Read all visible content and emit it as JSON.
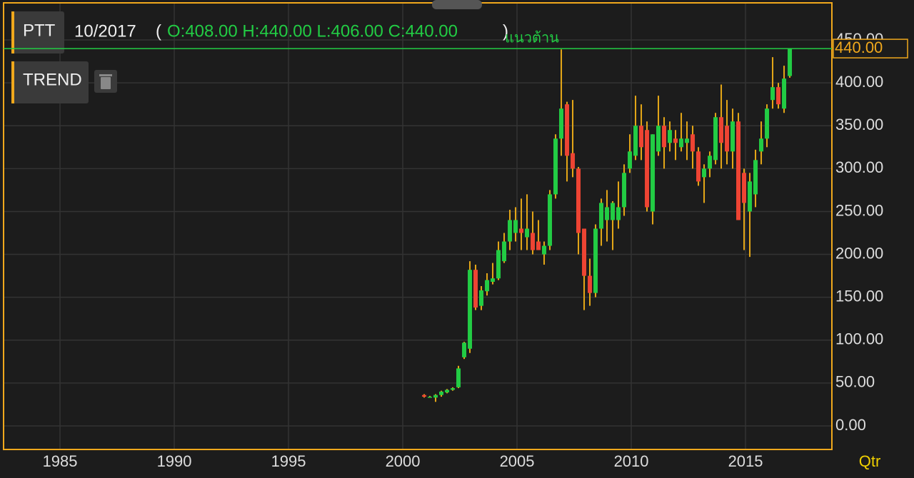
{
  "chart_data": {
    "type": "candlestick",
    "header": {
      "symbol": "PTT",
      "period": "10/2017",
      "open_paren": "(",
      "ohlc": "O:408.00 H:440.00 L:406.00 C:440.00",
      "close_paren": ")",
      "indicator": "TREND"
    },
    "interval": "Qtr",
    "hline": {
      "value": 440,
      "label": "แนวต้าน",
      "price_label": "440.00",
      "color": "#22cc44"
    },
    "up_color": "#22cc44",
    "down_color": "#ee4433",
    "wick_color": "#e6a817",
    "grid": true,
    "xlim": [
      1982.53,
      2018.78
    ],
    "xticks": [
      1985,
      1990,
      1995,
      2000,
      2005,
      2010,
      2015
    ],
    "ylim": [
      -27.5,
      493.3
    ],
    "yticks": [
      {
        "value": 0,
        "label": "0.00"
      },
      {
        "value": 50,
        "label": "50.00"
      },
      {
        "value": 100,
        "label": "100.00"
      },
      {
        "value": 150,
        "label": "150.00"
      },
      {
        "value": 200,
        "label": "200.00"
      },
      {
        "value": 250,
        "label": "250.00"
      },
      {
        "value": 300,
        "label": "300.00"
      },
      {
        "value": 350,
        "label": "350.00"
      },
      {
        "value": 400,
        "label": "400.00"
      },
      {
        "value": 450,
        "label": "450.00"
      }
    ],
    "x": [
      2000.9375,
      2001.1875,
      2001.4375,
      2001.6875,
      2001.9375,
      2002.1875,
      2002.4375,
      2002.6875,
      2002.9375,
      2003.1875,
      2003.4375,
      2003.6875,
      2003.9375,
      2004.1875,
      2004.4375,
      2004.6875,
      2004.9375,
      2005.1875,
      2005.4375,
      2005.6875,
      2005.9375,
      2006.1875,
      2006.4375,
      2006.6875,
      2006.9375,
      2007.1875,
      2007.4375,
      2007.6875,
      2007.9375,
      2008.1875,
      2008.4375,
      2008.6875,
      2008.9375,
      2009.1875,
      2009.4375,
      2009.6875,
      2009.9375,
      2010.1875,
      2010.4375,
      2010.6875,
      2010.9375,
      2011.1875,
      2011.4375,
      2011.6875,
      2011.9375,
      2012.1875,
      2012.4375,
      2012.6875,
      2012.9375,
      2013.1875,
      2013.4375,
      2013.6875,
      2013.9375,
      2014.1875,
      2014.4375,
      2014.6875,
      2014.9375,
      2015.1875,
      2015.4375,
      2015.6875,
      2015.9375,
      2016.1875,
      2016.4375,
      2016.6875,
      2016.9375
    ],
    "open": [
      36,
      34,
      33,
      36,
      39,
      42,
      45,
      80,
      90,
      182,
      140,
      157,
      168,
      172,
      192,
      215,
      225,
      230,
      220,
      225,
      215,
      200,
      210,
      270,
      335,
      375,
      318,
      300,
      230,
      175,
      155,
      230,
      240,
      240,
      240,
      255,
      300,
      315,
      350,
      345,
      250,
      320,
      350,
      330,
      335,
      325,
      330,
      340,
      320,
      290,
      300,
      310,
      360,
      350,
      320,
      355,
      295,
      250,
      270,
      320,
      335,
      380,
      395,
      370,
      408
    ],
    "high": [
      37,
      35,
      37,
      41,
      43,
      45,
      70,
      98,
      192,
      188,
      163,
      178,
      190,
      215,
      225,
      252,
      255,
      265,
      270,
      250,
      240,
      215,
      275,
      340,
      439,
      378,
      380,
      302,
      230,
      195,
      235,
      265,
      275,
      262,
      285,
      305,
      340,
      385,
      375,
      355,
      340,
      385,
      360,
      355,
      345,
      365,
      355,
      350,
      325,
      305,
      320,
      365,
      398,
      380,
      370,
      365,
      300,
      295,
      322,
      355,
      375,
      430,
      400,
      420,
      440
    ],
    "low": [
      33,
      33,
      28,
      34,
      38,
      41,
      44,
      78,
      85,
      135,
      135,
      152,
      165,
      170,
      190,
      205,
      215,
      205,
      205,
      200,
      205,
      188,
      205,
      265,
      315,
      285,
      290,
      200,
      135,
      140,
      150,
      210,
      215,
      205,
      230,
      245,
      295,
      310,
      310,
      250,
      235,
      315,
      300,
      320,
      310,
      320,
      310,
      300,
      280,
      260,
      290,
      305,
      300,
      305,
      300,
      240,
      205,
      197,
      255,
      305,
      325,
      370,
      370,
      365,
      406
    ],
    "close": [
      34,
      34,
      36,
      40,
      42,
      44,
      67,
      97,
      182,
      138,
      158,
      170,
      172,
      205,
      215,
      240,
      240,
      225,
      230,
      205,
      205,
      210,
      270,
      335,
      370,
      315,
      300,
      225,
      175,
      155,
      230,
      260,
      255,
      260,
      255,
      295,
      320,
      350,
      325,
      255,
      340,
      350,
      325,
      345,
      330,
      335,
      335,
      320,
      285,
      300,
      315,
      360,
      330,
      320,
      355,
      240,
      260,
      285,
      310,
      335,
      370,
      395,
      375,
      405,
      440
    ]
  }
}
